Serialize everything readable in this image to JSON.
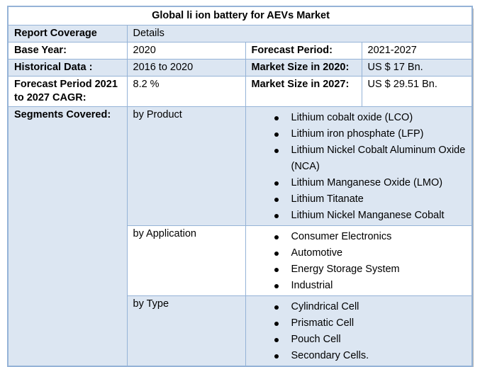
{
  "table": {
    "title": "Global li ion battery for AEVs Market",
    "report_coverage": {
      "label": "Report Coverage",
      "value": "Details"
    },
    "base_year": {
      "label": "Base Year:",
      "value": "2020"
    },
    "forecast_period": {
      "label": "Forecast Period:",
      "value": "2021-2027"
    },
    "historical_data": {
      "label": "Historical Data :",
      "value": "2016 to 2020"
    },
    "market_size_2020": {
      "label": "Market Size in 2020:",
      "value": "US $ 17 Bn."
    },
    "cagr": {
      "label": "Forecast Period 2021 to 2027 CAGR:",
      "value": "8.2 %"
    },
    "market_size_2027": {
      "label": "Market Size in 2027:",
      "value": "US $ 29.51 Bn."
    },
    "segments_covered_label": "Segments Covered:",
    "segments": [
      {
        "group": "by Product",
        "items": [
          "Lithium cobalt oxide (LCO)",
          "Lithium iron phosphate (LFP)",
          "Lithium Nickel Cobalt Aluminum Oxide (NCA)",
          "Lithium Manganese Oxide (LMO)",
          "Lithium Titanate",
          "Lithium Nickel Manganese Cobalt"
        ]
      },
      {
        "group": "by Application",
        "items": [
          "Consumer Electronics",
          "Automotive",
          "Energy Storage System",
          "Industrial"
        ]
      },
      {
        "group": "by Type",
        "items": [
          "Cylindrical Cell",
          "Prismatic Cell",
          "Pouch Cell",
          "Secondary Cells."
        ]
      }
    ]
  },
  "colors": {
    "row_shade": "#dce6f2",
    "border": "#95b3d7",
    "text": "#000000"
  }
}
